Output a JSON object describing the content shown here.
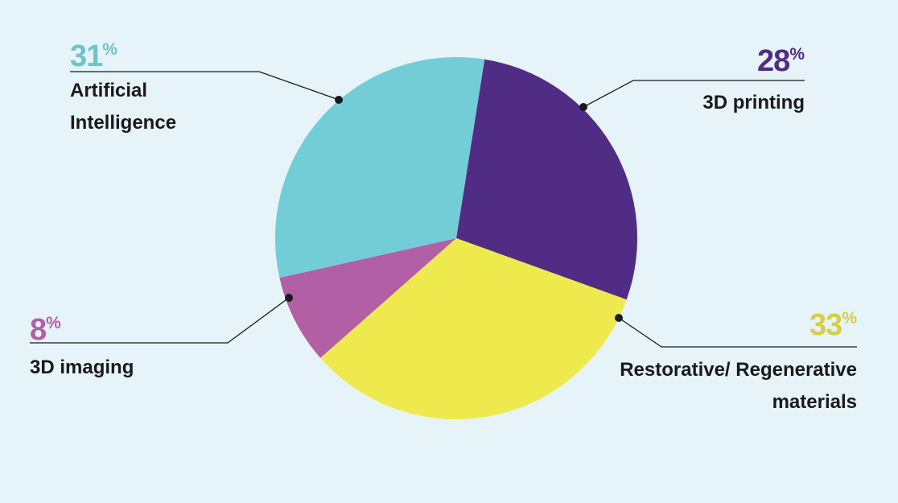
{
  "chart_data": {
    "type": "pie",
    "categories": [
      "3D printing",
      "Restorative/ Regenerative materials",
      "3D imaging",
      "Artificial Intelligence"
    ],
    "values": [
      28,
      33,
      8,
      31
    ],
    "value_labels": [
      "28%",
      "33%",
      "8%",
      "31%"
    ],
    "colors": [
      "#512c84",
      "#eeea4e",
      "#b25fa5",
      "#72cdd6"
    ],
    "label_colors": [
      "#512c84",
      "#d6cf45",
      "#b25fa5",
      "#6cc4cd"
    ]
  }
}
